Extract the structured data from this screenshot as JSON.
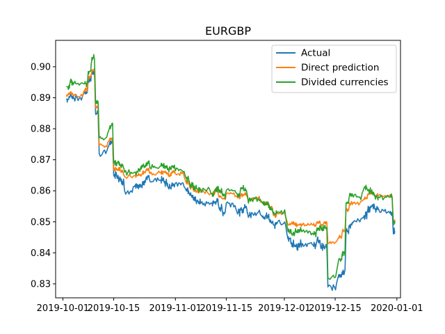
{
  "chart_data": {
    "type": "line",
    "title": "EURGBP",
    "xlabel": "",
    "ylabel": "",
    "x_ticks": [
      "2019-10-01",
      "2019-10-15",
      "2019-11-01",
      "2019-11-15",
      "2019-12-01",
      "2019-12-15",
      "2020-01-01"
    ],
    "y_ticks": [
      "0.83",
      "0.84",
      "0.85",
      "0.86",
      "0.87",
      "0.88",
      "0.89",
      "0.90"
    ],
    "xlim": [
      "2019-09-29",
      "2020-01-02"
    ],
    "ylim": [
      0.8255,
      0.9085
    ],
    "grid": false,
    "legend_position": "top-right",
    "x": [
      "2019-10-02",
      "2019-10-03",
      "2019-10-04",
      "2019-10-07",
      "2019-10-08",
      "2019-10-09",
      "2019-10-10",
      "2019-10-11",
      "2019-10-14",
      "2019-10-15",
      "2019-10-16",
      "2019-10-17",
      "2019-10-18",
      "2019-10-21",
      "2019-10-22",
      "2019-10-23",
      "2019-10-24",
      "2019-10-25",
      "2019-10-28",
      "2019-10-29",
      "2019-10-30",
      "2019-10-31",
      "2019-11-01",
      "2019-11-04",
      "2019-11-05",
      "2019-11-06",
      "2019-11-07",
      "2019-11-08",
      "2019-11-11",
      "2019-11-12",
      "2019-11-13",
      "2019-11-14",
      "2019-11-15",
      "2019-11-18",
      "2019-11-19",
      "2019-11-20",
      "2019-11-21",
      "2019-11-22",
      "2019-11-25",
      "2019-11-26",
      "2019-11-27",
      "2019-11-28",
      "2019-11-29",
      "2019-12-02",
      "2019-12-03",
      "2019-12-04",
      "2019-12-05",
      "2019-12-06",
      "2019-12-09",
      "2019-12-10",
      "2019-12-11",
      "2019-12-12",
      "2019-12-13",
      "2019-12-16",
      "2019-12-17",
      "2019-12-18",
      "2019-12-19",
      "2019-12-20",
      "2019-12-23",
      "2019-12-24",
      "2019-12-25",
      "2019-12-26",
      "2019-12-27",
      "2019-12-30",
      "2019-12-31"
    ],
    "series": [
      {
        "name": "Actual",
        "color": "#1f77b4",
        "values": [
          0.8895,
          0.8905,
          0.89,
          0.892,
          0.896,
          0.8985,
          0.885,
          0.872,
          0.876,
          0.865,
          0.864,
          0.863,
          0.86,
          0.862,
          0.8615,
          0.863,
          0.8645,
          0.863,
          0.8635,
          0.8625,
          0.861,
          0.862,
          0.8625,
          0.86,
          0.8585,
          0.857,
          0.8565,
          0.856,
          0.856,
          0.8565,
          0.8545,
          0.853,
          0.856,
          0.853,
          0.854,
          0.8545,
          0.852,
          0.853,
          0.8515,
          0.852,
          0.85,
          0.849,
          0.8495,
          0.8445,
          0.843,
          0.842,
          0.843,
          0.843,
          0.8425,
          0.844,
          0.842,
          0.842,
          0.829,
          0.833,
          0.834,
          0.847,
          0.849,
          0.85,
          0.852,
          0.854,
          0.855,
          0.854,
          0.854,
          0.853,
          0.847
        ]
      },
      {
        "name": "Direct prediction",
        "color": "#ff7f0e",
        "values": [
          0.891,
          0.8915,
          0.8905,
          0.8925,
          0.8965,
          0.899,
          0.887,
          0.8745,
          0.877,
          0.867,
          0.867,
          0.866,
          0.8645,
          0.865,
          0.865,
          0.866,
          0.867,
          0.8655,
          0.866,
          0.866,
          0.865,
          0.866,
          0.8655,
          0.8625,
          0.861,
          0.86,
          0.86,
          0.8595,
          0.859,
          0.86,
          0.858,
          0.8575,
          0.859,
          0.858,
          0.8585,
          0.859,
          0.857,
          0.8575,
          0.856,
          0.856,
          0.8545,
          0.852,
          0.853,
          0.849,
          0.8495,
          0.849,
          0.849,
          0.849,
          0.849,
          0.85,
          0.849,
          0.85,
          0.843,
          0.845,
          0.847,
          0.854,
          0.856,
          0.856,
          0.8575,
          0.859,
          0.859,
          0.8585,
          0.8585,
          0.8585,
          0.85
        ]
      },
      {
        "name": "Divided currencies",
        "color": "#2ca02c",
        "values": [
          0.8935,
          0.895,
          0.8945,
          0.8945,
          0.8985,
          0.903,
          0.889,
          0.877,
          0.881,
          0.869,
          0.869,
          0.868,
          0.866,
          0.866,
          0.867,
          0.868,
          0.869,
          0.8675,
          0.868,
          0.868,
          0.867,
          0.868,
          0.8665,
          0.864,
          0.862,
          0.861,
          0.8605,
          0.8605,
          0.859,
          0.8605,
          0.86,
          0.8585,
          0.86,
          0.859,
          0.861,
          0.86,
          0.857,
          0.8575,
          0.856,
          0.8555,
          0.854,
          0.8525,
          0.853,
          0.847,
          0.846,
          0.847,
          0.8475,
          0.847,
          0.846,
          0.848,
          0.848,
          0.848,
          0.832,
          0.838,
          0.84,
          0.856,
          0.859,
          0.858,
          0.861,
          0.86,
          0.8595,
          0.858,
          0.858,
          0.858,
          0.85
        ]
      }
    ]
  }
}
